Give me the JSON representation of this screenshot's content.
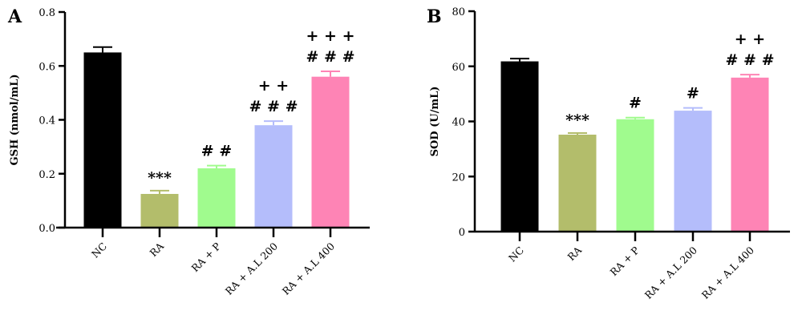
{
  "chart_data": [
    {
      "type": "bar",
      "panel": "A",
      "ylabel": "GSH (nmol/mL)",
      "ylim": [
        0,
        0.8
      ],
      "yticks": [
        "0.0",
        "0.2",
        "0.4",
        "0.6",
        "0.8"
      ],
      "ytick_values": [
        0,
        0.2,
        0.4,
        0.6,
        0.8
      ],
      "categories": [
        "NC",
        "RA",
        "RA + P",
        "RA + A.L 200",
        "RA + A.L 400"
      ],
      "values": [
        0.65,
        0.125,
        0.22,
        0.38,
        0.56
      ],
      "errors": [
        0.02,
        0.012,
        0.01,
        0.015,
        0.02
      ],
      "colors": [
        "#000000",
        "#b3bd6b",
        "#a0fb8e",
        "#b4bdfb",
        "#fe84b5"
      ],
      "annotations": [
        [],
        [
          "***"
        ],
        [
          "# #"
        ],
        [
          "# # #",
          "+ +"
        ],
        [
          "# # #",
          "+ + +"
        ]
      ]
    },
    {
      "type": "bar",
      "panel": "B",
      "ylabel": "SOD (U/mL)",
      "ylim": [
        0,
        80
      ],
      "yticks": [
        "0",
        "20",
        "40",
        "60",
        "80"
      ],
      "ytick_values": [
        0,
        20,
        40,
        60,
        80
      ],
      "categories": [
        "NC",
        "RA",
        "RA + P",
        "RA + A.L 200",
        "RA + A.L 400"
      ],
      "values": [
        61.8,
        35.2,
        40.8,
        43.9,
        55.9
      ],
      "errors": [
        1.0,
        0.6,
        0.6,
        1.0,
        1.1
      ],
      "colors": [
        "#000000",
        "#b3bd6b",
        "#a0fb8e",
        "#b4bdfb",
        "#fe84b5"
      ],
      "annotations": [
        [],
        [
          "***"
        ],
        [
          "#"
        ],
        [
          "#"
        ],
        [
          "# # #",
          "+ +"
        ]
      ]
    }
  ]
}
